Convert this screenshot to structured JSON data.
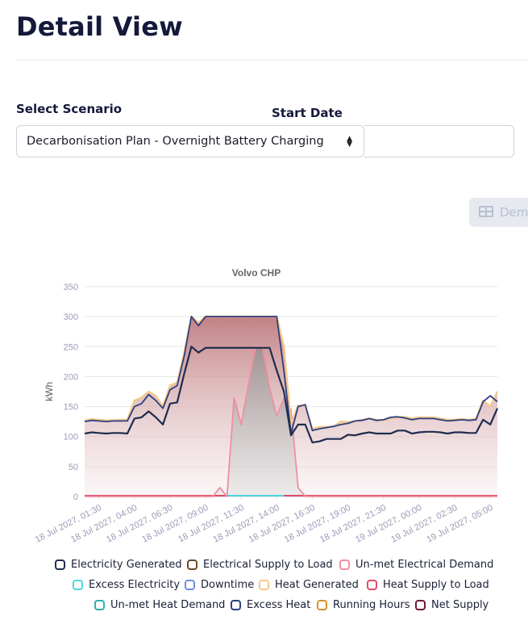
{
  "header": {
    "title": "Detail View"
  },
  "form": {
    "scenario_label": "Select Scenario",
    "scenario_value": "Decarbonisation Plan - Overnight Battery Charging",
    "start_date_label": "Start Date",
    "start_date_value": ""
  },
  "table_button": {
    "label": "Dem",
    "icon": "table-icon"
  },
  "chart_data": {
    "type": "area",
    "title": "Volvo CHP",
    "ylabel": "kWh",
    "ylim": [
      0,
      350
    ],
    "yticks": [
      0,
      50,
      100,
      150,
      200,
      250,
      300,
      350
    ],
    "xlabels": [
      "18 Jul 2027, 01:30",
      "18 Jul 2027, 04:00",
      "18 Jul 2027, 06:30",
      "18 Jul 2027, 09:00",
      "18 Jul 2027, 11:30",
      "18 Jul 2027, 14:00",
      "18 Jul 2027, 16:30",
      "18 Jul 2027, 19:00",
      "18 Jul 2027, 21:30",
      "19 Jul 2027, 00:00",
      "19 Jul 2027, 02:30",
      "19 Jul 2027, 05:00"
    ],
    "x_start": "18 Jul 2027, 00:30",
    "x_step_minutes": 30,
    "grid": true,
    "legend_position": "bottom",
    "series": [
      {
        "name": "Electricity Generated",
        "color": "#1f2d4f",
        "values": [
          105,
          107,
          106,
          105,
          106,
          106,
          105,
          130,
          132,
          142,
          132,
          120,
          155,
          157,
          205,
          250,
          240,
          248,
          248,
          248,
          248,
          248,
          248,
          248,
          248,
          248,
          248,
          210,
          175,
          102,
          120,
          120,
          90,
          92,
          96,
          96,
          96,
          103,
          102,
          105,
          107,
          105,
          105,
          105,
          110,
          110,
          105,
          107,
          108,
          108,
          107,
          105,
          107,
          107,
          106,
          106,
          128,
          120,
          147
        ]
      },
      {
        "name": "Electrical Supply to Load",
        "color": "#6b4a2a",
        "values": []
      },
      {
        "name": "Un-met Electrical Demand",
        "color": "#f08fa0",
        "values": [
          0,
          0,
          0,
          0,
          0,
          0,
          0,
          0,
          0,
          0,
          0,
          0,
          0,
          0,
          0,
          0,
          0,
          0,
          0,
          15,
          0,
          165,
          120,
          185,
          248,
          250,
          180,
          135,
          163,
          145,
          15,
          0,
          0,
          0,
          0,
          0,
          0,
          0,
          0,
          0,
          0,
          0,
          0,
          0,
          0,
          0,
          0,
          0,
          0,
          0,
          0,
          0,
          0,
          0,
          0,
          0,
          0,
          0,
          0
        ]
      },
      {
        "name": "Excess Electricity",
        "color": "#4dd6dc",
        "values": []
      },
      {
        "name": "Downtime",
        "color": "#6e8fe0",
        "values": []
      },
      {
        "name": "Heat Generated",
        "color": "#f5c98a",
        "values": [
          127,
          129,
          128,
          127,
          127,
          128,
          128,
          160,
          165,
          175,
          168,
          150,
          185,
          190,
          240,
          300,
          290,
          300,
          300,
          300,
          300,
          300,
          300,
          300,
          300,
          300,
          300,
          300,
          250,
          120,
          152,
          150,
          113,
          116,
          116,
          117,
          125,
          124,
          125,
          128,
          130,
          128,
          127,
          130,
          132,
          133,
          130,
          132,
          132,
          132,
          130,
          128,
          128,
          129,
          128,
          130,
          160,
          150,
          175
        ]
      },
      {
        "name": "Heat Supply to Load",
        "color": "#e04a6a",
        "values": []
      },
      {
        "name": "Un-met Heat Demand",
        "color": "#2bb3a8",
        "values": []
      },
      {
        "name": "Excess Heat",
        "color": "#2c3f80",
        "values": [
          125,
          127,
          126,
          125,
          126,
          126,
          126,
          150,
          155,
          170,
          160,
          147,
          178,
          185,
          235,
          300,
          285,
          300,
          300,
          300,
          300,
          300,
          300,
          300,
          300,
          300,
          300,
          300,
          210,
          105,
          150,
          153,
          110,
          113,
          115,
          117,
          120,
          122,
          126,
          127,
          130,
          127,
          128,
          132,
          133,
          131,
          128,
          130,
          130,
          130,
          128,
          126,
          127,
          128,
          127,
          128,
          158,
          168,
          158
        ]
      },
      {
        "name": "Running Hours",
        "color": "#d4932a",
        "values": []
      },
      {
        "name": "Net Supply",
        "color": "#6e1a3a",
        "values": []
      }
    ]
  }
}
